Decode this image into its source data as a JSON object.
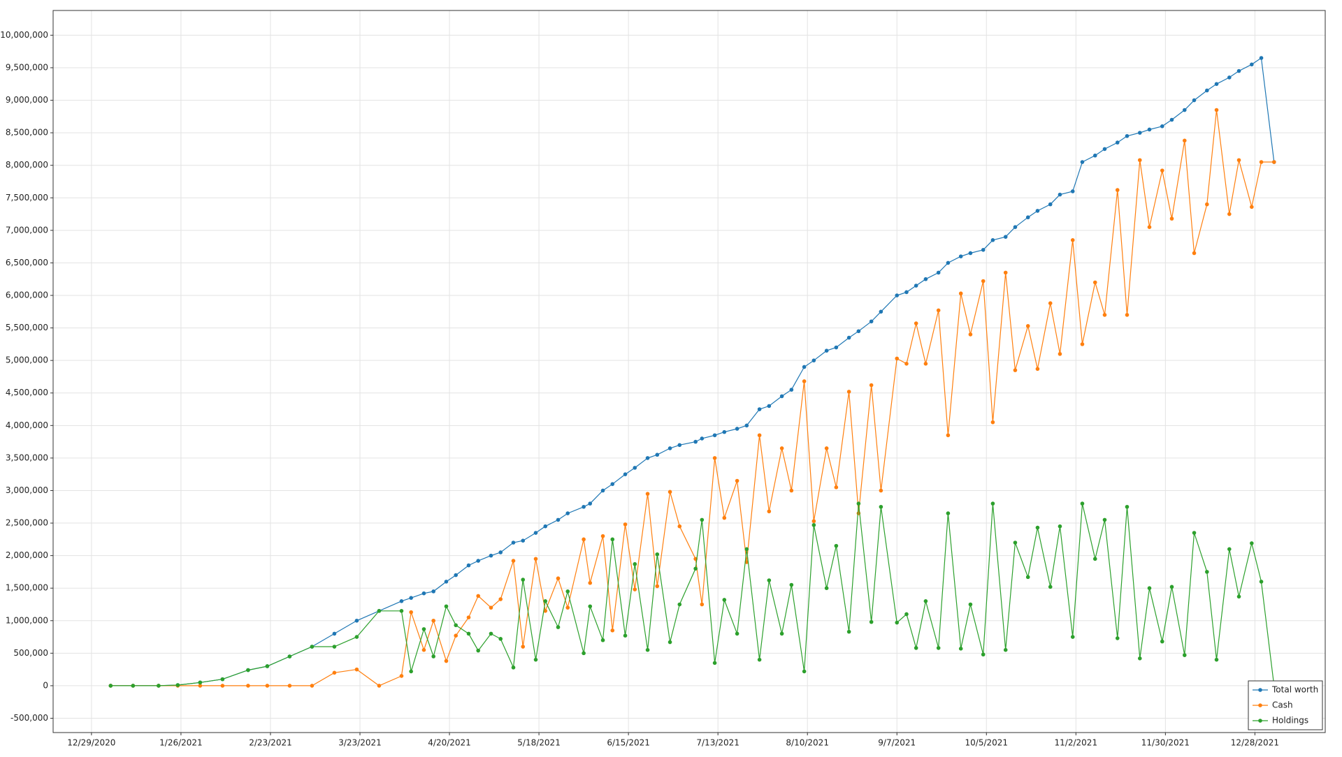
{
  "chart_data": {
    "type": "line",
    "x": [
      "1/4/2021",
      "1/11/2021",
      "1/19/2021",
      "1/25/2021",
      "2/1/2021",
      "2/8/2021",
      "2/16/2021",
      "2/22/2021",
      "3/1/2021",
      "3/8/2021",
      "3/15/2021",
      "3/22/2021",
      "3/29/2021",
      "4/5/2021",
      "4/8/2021",
      "4/12/2021",
      "4/15/2021",
      "4/19/2021",
      "4/22/2021",
      "4/26/2021",
      "4/29/2021",
      "5/3/2021",
      "5/6/2021",
      "5/10/2021",
      "5/13/2021",
      "5/17/2021",
      "5/20/2021",
      "5/24/2021",
      "5/27/2021",
      "6/1/2021",
      "6/3/2021",
      "6/7/2021",
      "6/10/2021",
      "6/14/2021",
      "6/17/2021",
      "6/21/2021",
      "6/24/2021",
      "6/28/2021",
      "7/1/2021",
      "7/6/2021",
      "7/8/2021",
      "7/12/2021",
      "7/15/2021",
      "7/19/2021",
      "7/22/2021",
      "7/26/2021",
      "7/29/2021",
      "8/2/2021",
      "8/5/2021",
      "8/9/2021",
      "8/12/2021",
      "8/16/2021",
      "8/19/2021",
      "8/23/2021",
      "8/26/2021",
      "8/30/2021",
      "9/2/2021",
      "9/7/2021",
      "9/10/2021",
      "9/13/2021",
      "9/16/2021",
      "9/20/2021",
      "9/23/2021",
      "9/27/2021",
      "9/30/2021",
      "10/4/2021",
      "10/7/2021",
      "10/11/2021",
      "10/14/2021",
      "10/18/2021",
      "10/21/2021",
      "10/25/2021",
      "10/28/2021",
      "11/1/2021",
      "11/4/2021",
      "11/8/2021",
      "11/11/2021",
      "11/15/2021",
      "11/18/2021",
      "11/22/2021",
      "11/25/2021",
      "11/29/2021",
      "12/2/2021",
      "12/6/2021",
      "12/9/2021",
      "12/13/2021",
      "12/16/2021",
      "12/20/2021",
      "12/23/2021",
      "12/27/2021",
      "12/30/2021",
      "1/3/2022"
    ],
    "series": [
      {
        "name": "Total worth",
        "color": "#1f77b4",
        "values": [
          0,
          0,
          0,
          10000,
          50000,
          100000,
          240000,
          300000,
          450000,
          600000,
          800000,
          1000000,
          1150000,
          1300000,
          1350000,
          1420000,
          1450000,
          1600000,
          1700000,
          1850000,
          1920000,
          2000000,
          2050000,
          2200000,
          2230000,
          2350000,
          2450000,
          2550000,
          2650000,
          2750000,
          2800000,
          3000000,
          3100000,
          3250000,
          3350000,
          3500000,
          3550000,
          3650000,
          3700000,
          3750000,
          3800000,
          3850000,
          3900000,
          3950000,
          4000000,
          4250000,
          4300000,
          4450000,
          4550000,
          4900000,
          5000000,
          5150000,
          5200000,
          5350000,
          5450000,
          5600000,
          5750000,
          6000000,
          6050000,
          6150000,
          6250000,
          6350000,
          6500000,
          6600000,
          6650000,
          6700000,
          6850000,
          6900000,
          7050000,
          7200000,
          7300000,
          7400000,
          7550000,
          7600000,
          8050000,
          8150000,
          8250000,
          8350000,
          8450000,
          8500000,
          8550000,
          8600000,
          8700000,
          8850000,
          9000000,
          9150000,
          9250000,
          9350000,
          9450000,
          9550000,
          9650000,
          8050000
        ]
      },
      {
        "name": "Cash",
        "color": "#ff7f0e",
        "values": [
          0,
          0,
          0,
          0,
          0,
          0,
          0,
          0,
          0,
          0,
          200000,
          250000,
          0,
          150000,
          1130000,
          550000,
          1000000,
          380000,
          770000,
          1050000,
          1380000,
          1200000,
          1330000,
          1920000,
          600000,
          1950000,
          1150000,
          1650000,
          1200000,
          2250000,
          1580000,
          2300000,
          850000,
          2480000,
          1480000,
          2950000,
          1530000,
          2980000,
          2450000,
          1950000,
          1250000,
          3500000,
          2580000,
          3150000,
          1900000,
          3850000,
          2680000,
          3650000,
          3000000,
          4680000,
          2530000,
          3650000,
          3050000,
          4520000,
          2650000,
          4620000,
          3000000,
          5030000,
          4950000,
          5570000,
          4950000,
          5770000,
          3850000,
          6030000,
          5400000,
          6220000,
          4050000,
          6350000,
          4850000,
          5530000,
          4870000,
          5880000,
          5100000,
          6850000,
          5250000,
          6200000,
          5700000,
          7620000,
          5700000,
          8080000,
          7050000,
          7920000,
          7180000,
          8380000,
          6650000,
          7400000,
          8850000,
          7250000,
          8080000,
          7360000,
          8050000,
          8050000
        ]
      },
      {
        "name": "Holdings",
        "color": "#2ca02c",
        "values": [
          0,
          0,
          0,
          10000,
          50000,
          100000,
          240000,
          300000,
          450000,
          600000,
          600000,
          750000,
          1150000,
          1150000,
          220000,
          870000,
          450000,
          1220000,
          930000,
          800000,
          540000,
          800000,
          720000,
          280000,
          1630000,
          400000,
          1300000,
          900000,
          1450000,
          500000,
          1220000,
          700000,
          2250000,
          770000,
          1870000,
          550000,
          2020000,
          670000,
          1250000,
          1800000,
          2550000,
          350000,
          1320000,
          800000,
          2100000,
          400000,
          1620000,
          800000,
          1550000,
          220000,
          2470000,
          1500000,
          2150000,
          830000,
          2800000,
          980000,
          2750000,
          970000,
          1100000,
          580000,
          1300000,
          580000,
          2650000,
          570000,
          1250000,
          480000,
          2800000,
          550000,
          2200000,
          1670000,
          2430000,
          1520000,
          2450000,
          750000,
          2800000,
          1950000,
          2550000,
          730000,
          2750000,
          420000,
          1500000,
          680000,
          1520000,
          470000,
          2350000,
          1750000,
          400000,
          2100000,
          1370000,
          2190000,
          1600000,
          0
        ]
      }
    ],
    "xlim": [
      "12/17/2020",
      "1/19/2022"
    ],
    "xticks": [
      "12/29/2020",
      "1/26/2021",
      "2/23/2021",
      "3/23/2021",
      "4/20/2021",
      "5/18/2021",
      "6/15/2021",
      "7/13/2021",
      "8/10/2021",
      "9/7/2021",
      "10/5/2021",
      "11/2/2021",
      "11/30/2021",
      "12/28/2021"
    ],
    "ylim": [
      -720000,
      10380000
    ],
    "yticks": [
      {
        "value": -500000,
        "label": "-500,000"
      },
      0,
      {
        "value": 500000,
        "label": "500,000"
      },
      {
        "value": 1000000,
        "label": "1,000,000"
      },
      {
        "value": 1500000,
        "label": "1,500,000"
      },
      {
        "value": 2000000,
        "label": "2,000,000"
      },
      {
        "value": 2500000,
        "label": "2,500,000"
      },
      {
        "value": 3000000,
        "label": "3,000,000"
      },
      {
        "value": 3500000,
        "label": "3,500,000"
      },
      {
        "value": 4000000,
        "label": "4,000,000"
      },
      {
        "value": 4500000,
        "label": "4,500,000"
      },
      {
        "value": 5000000,
        "label": "5,000,000"
      },
      {
        "value": 5500000,
        "label": "5,500,000"
      },
      {
        "value": 6000000,
        "label": "6,000,000"
      },
      {
        "value": 6500000,
        "label": "6,500,000"
      },
      {
        "value": 7000000,
        "label": "7,000,000"
      },
      {
        "value": 7500000,
        "label": "7,500,000"
      },
      {
        "value": 8000000,
        "label": "8,000,000"
      },
      {
        "value": 8500000,
        "label": "8,500,000"
      },
      {
        "value": 9000000,
        "label": "9,000,000"
      },
      {
        "value": 9500000,
        "label": "9,500,000"
      },
      {
        "value": 10000000,
        "label": "10,000,000"
      }
    ],
    "grid": true,
    "legend": "bottom-right"
  }
}
